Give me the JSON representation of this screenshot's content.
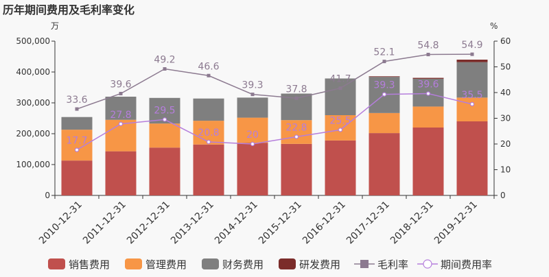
{
  "chart_data": {
    "type": "bar",
    "title": "历年期间费用及毛利率变化",
    "y_left_unit": "万",
    "y_right_unit": "%",
    "categories": [
      "2010-12-31",
      "2011-12-31",
      "2012-12-31",
      "2013-12-31",
      "2014-12-31",
      "2015-12-31",
      "2016-12-31",
      "2017-12-31",
      "2018-12-31",
      "2019-12-31"
    ],
    "y_left_ticks": [
      "0",
      "100,000",
      "200,000",
      "300,000",
      "400,000",
      "500,000"
    ],
    "y_right_ticks": [
      "0",
      "10",
      "20",
      "30",
      "40",
      "50",
      "60"
    ],
    "ylim_left": [
      0,
      500000
    ],
    "ylim_right": [
      0,
      60
    ],
    "bar_series": [
      {
        "name": "销售费用",
        "color": "#c0504d",
        "values": [
          113000,
          143000,
          155000,
          165000,
          170000,
          167000,
          178000,
          202000,
          220000,
          240000
        ]
      },
      {
        "name": "管理费用",
        "color": "#f79646",
        "values": [
          100000,
          102000,
          78000,
          77000,
          82000,
          77000,
          82000,
          65000,
          68000,
          77000
        ]
      },
      {
        "name": "财务费用",
        "color": "#7f7f7f",
        "values": [
          41000,
          75000,
          83000,
          72000,
          65000,
          86000,
          119000,
          117000,
          90000,
          115000
        ]
      },
      {
        "name": "研发费用",
        "color": "#7b2c2a",
        "values": [
          0,
          0,
          0,
          0,
          0,
          0,
          0,
          2000,
          3000,
          8000
        ]
      }
    ],
    "line_series": [
      {
        "name": "毛利率",
        "color": "#8c7a90",
        "marker": "square",
        "values": [
          33.6,
          39.6,
          49.2,
          46.6,
          39.3,
          37.8,
          41.7,
          52.1,
          54.8,
          54.9
        ],
        "labels": [
          "33.6",
          "39.6",
          "49.2",
          "46.6",
          "39.3",
          "37.8",
          "41.7",
          "52.1",
          "54.8",
          "54.9"
        ]
      },
      {
        "name": "期间费用率",
        "color": "#b57edc",
        "marker": "circle",
        "values": [
          17.7,
          27.8,
          29.5,
          20.8,
          20,
          22.8,
          25.5,
          39.3,
          39.6,
          35.5
        ],
        "labels": [
          "17.7",
          "27.8",
          "29.5",
          "20.8",
          "20",
          "22.8",
          "25.5",
          "39.3",
          "39.6",
          "35.5"
        ]
      }
    ],
    "legend_position": "bottom",
    "grid": false
  }
}
